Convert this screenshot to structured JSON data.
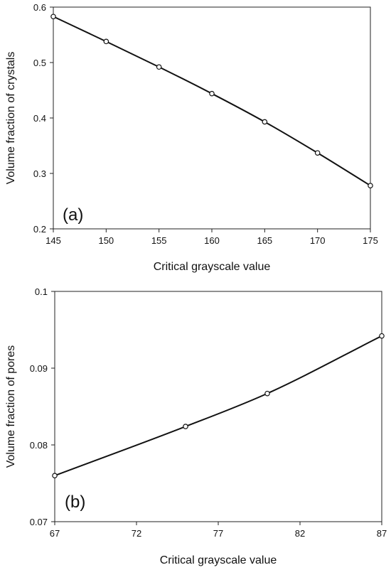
{
  "chart_data": [
    {
      "type": "line",
      "panel_label": "(a)",
      "xlabel": "Critical grayscale value",
      "ylabel": "Volume fraction of crystals",
      "xlim": [
        145,
        175
      ],
      "ylim": [
        0.2,
        0.6
      ],
      "x_ticks": [
        145,
        150,
        155,
        160,
        165,
        170,
        175
      ],
      "y_ticks": [
        0.2,
        0.3,
        0.4,
        0.5,
        0.6
      ],
      "y_tick_labels": [
        "0.2",
        "0.3",
        "0.4",
        "0.5",
        "0.6"
      ],
      "grid": false,
      "line_color": "#111111",
      "series": [
        {
          "x": [
            145,
            150,
            155,
            160,
            165,
            170,
            175
          ],
          "y": [
            0.583,
            0.538,
            0.492,
            0.444,
            0.393,
            0.337,
            0.278
          ]
        }
      ]
    },
    {
      "type": "line",
      "panel_label": "(b)",
      "xlabel": "Critical grayscale value",
      "ylabel": "Volume fraction of pores",
      "xlim": [
        67,
        87
      ],
      "ylim": [
        0.07,
        0.1
      ],
      "x_ticks": [
        67,
        72,
        77,
        82,
        87
      ],
      "y_ticks": [
        0.07,
        0.08,
        0.09,
        0.1
      ],
      "y_tick_labels": [
        "0.07",
        "0.08",
        "0.09",
        "0.1"
      ],
      "grid": false,
      "line_color": "#111111",
      "series": [
        {
          "x": [
            67,
            75,
            80,
            87
          ],
          "y": [
            0.076,
            0.0824,
            0.0867,
            0.0942
          ]
        }
      ]
    }
  ]
}
